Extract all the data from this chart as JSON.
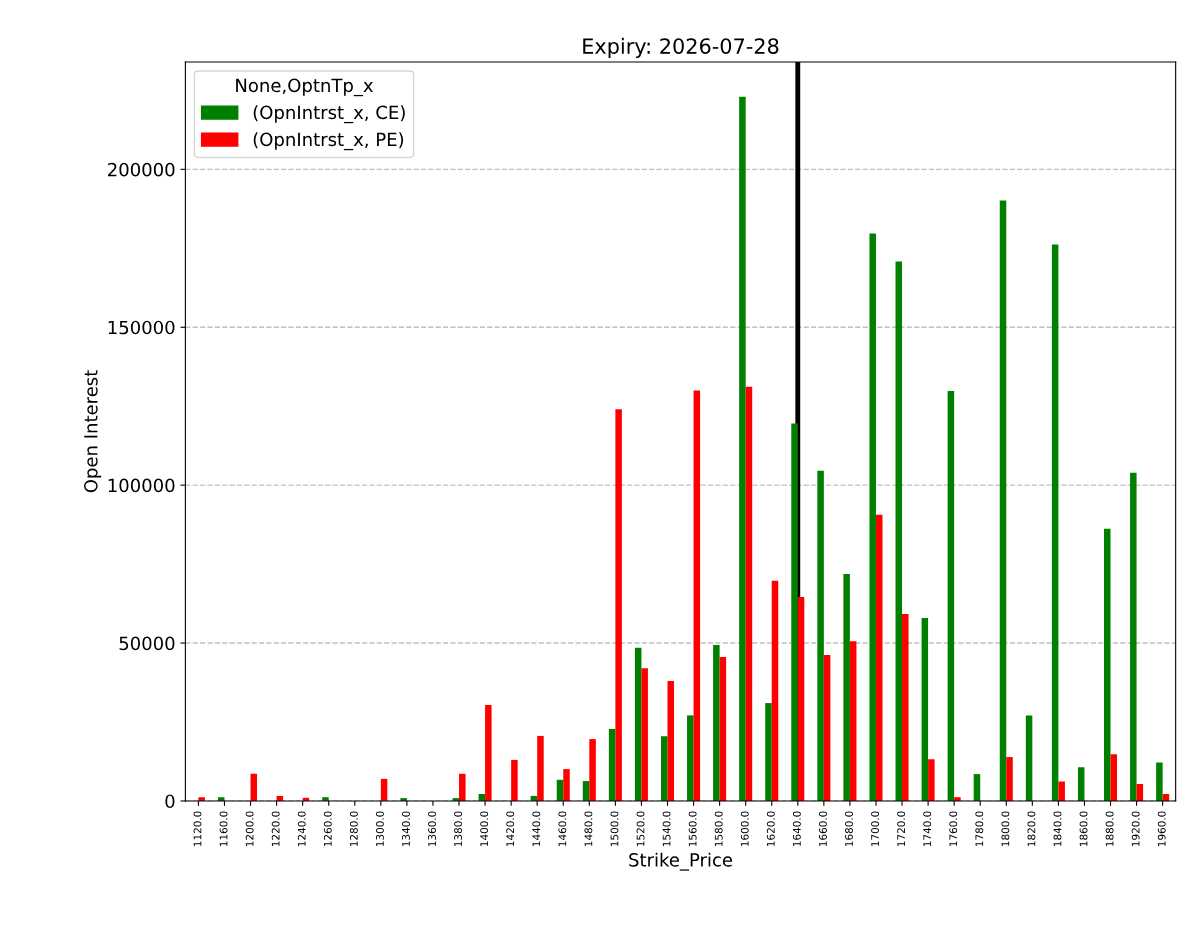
{
  "chart_data": {
    "type": "bar",
    "title": "Expiry: 2026-07-28",
    "xlabel": "Strike_Price",
    "ylabel": "Open Interest",
    "legend_title": "None,OptnTp_x",
    "categories": [
      "1120.0",
      "1160.0",
      "1200.0",
      "1220.0",
      "1240.0",
      "1260.0",
      "1280.0",
      "1300.0",
      "1340.0",
      "1360.0",
      "1380.0",
      "1400.0",
      "1420.0",
      "1440.0",
      "1460.0",
      "1480.0",
      "1500.0",
      "1520.0",
      "1540.0",
      "1560.0",
      "1580.0",
      "1600.0",
      "1620.0",
      "1640.0",
      "1660.0",
      "1680.0",
      "1700.0",
      "1720.0",
      "1740.0",
      "1760.0",
      "1780.0",
      "1800.0",
      "1820.0",
      "1840.0",
      "1860.0",
      "1880.0",
      "1920.0",
      "1960.0"
    ],
    "series": [
      {
        "name": "(OpnIntrst_x, CE)",
        "color": "#008000",
        "values": [
          0,
          1200,
          0,
          0,
          0,
          1200,
          0,
          0,
          900,
          0,
          900,
          2200,
          0,
          1600,
          6700,
          6300,
          22800,
          48500,
          20500,
          27100,
          49400,
          223000,
          31000,
          119500,
          104600,
          71900,
          179700,
          170800,
          57900,
          129800,
          8500,
          190100,
          27100,
          176200,
          10700,
          86200,
          103900,
          12200
        ]
      },
      {
        "name": "(OpnIntrst_x, PE)",
        "color": "#ff0000",
        "values": [
          1200,
          0,
          8600,
          1600,
          1000,
          0,
          0,
          7000,
          0,
          0,
          8600,
          30400,
          13000,
          20600,
          10100,
          19600,
          124000,
          42000,
          38000,
          130000,
          45600,
          131200,
          69700,
          64600,
          46200,
          50600,
          90600,
          59200,
          13200,
          1200,
          0,
          13900,
          0,
          6200,
          0,
          14800,
          5400,
          2200
        ]
      }
    ],
    "ylim": [
      0,
      234000
    ],
    "yticks": [
      0,
      50000,
      100000,
      150000,
      200000
    ],
    "grid": "y",
    "legend": "top left",
    "ref_lines": [
      {
        "axis": "x",
        "value": "1640.0",
        "color": "#000000"
      }
    ]
  }
}
